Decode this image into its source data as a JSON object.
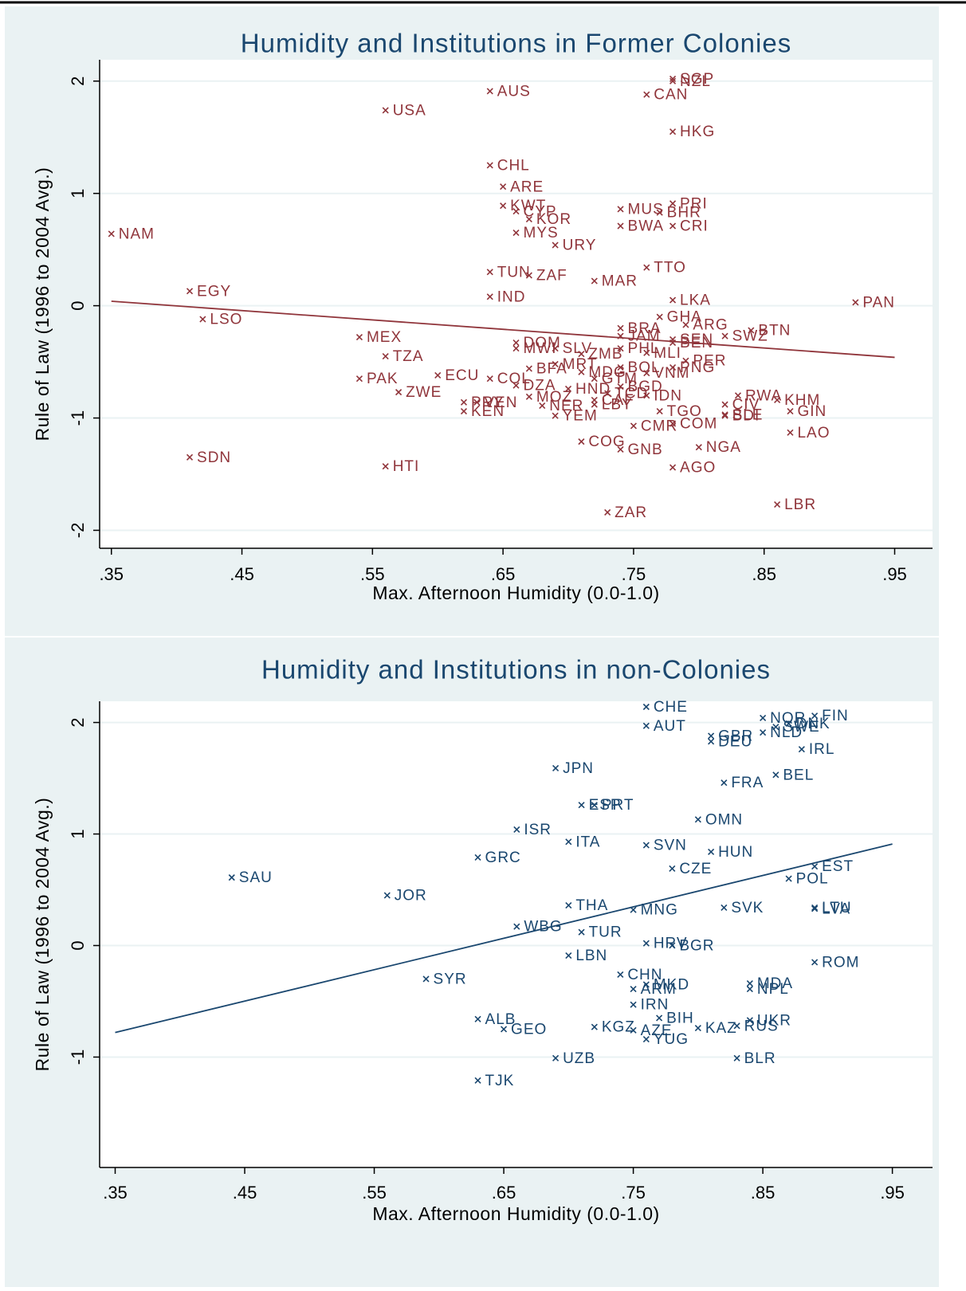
{
  "chart_data": [
    {
      "type": "scatter",
      "title": "Humidity and Institutions in Former Colonies",
      "x_label": "Max. Afternoon Humidity (0.0-1.0)",
      "y_label": "Rule of Law (1996 to 2004 Avg.)",
      "color": "#90353b",
      "grid": true,
      "xlim": [
        0.341,
        0.979
      ],
      "ylim": [
        -2.16,
        2.19
      ],
      "xticks": [
        {
          "value": 0.35,
          "label": ".35"
        },
        {
          "value": 0.45,
          "label": ".45"
        },
        {
          "value": 0.55,
          "label": ".55"
        },
        {
          "value": 0.65,
          "label": ".65"
        },
        {
          "value": 0.75,
          "label": ".75"
        },
        {
          "value": 0.85,
          "label": ".85"
        },
        {
          "value": 0.95,
          "label": ".95"
        }
      ],
      "yticks": [
        -2,
        -1,
        0,
        1,
        2
      ],
      "labels": [
        "NAM",
        "EGY",
        "LSO",
        "SDN",
        "MEX",
        "TZA",
        "PAK",
        "ZWE",
        "HTI",
        "USA",
        "AUS",
        "CHL",
        "ARE",
        "KWT",
        "CYP",
        "KOR",
        "MYS",
        "URY",
        "TUN",
        "ZAF",
        "IND",
        "MAR",
        "TTO",
        "LKA",
        "PAN",
        "SGP",
        "NZL",
        "CAN",
        "HKG",
        "PRI",
        "MUS",
        "BHR",
        "BWA",
        "CRI",
        "DOM",
        "MWI",
        "SLV",
        "BFA",
        "MRT",
        "ZMB",
        "ECU",
        "COL",
        "DZA",
        "HND",
        "BGD",
        "MDG",
        "GTM",
        "BOL",
        "VNM",
        "PNG",
        "PER",
        "IDN",
        "CAF",
        "TCD",
        "PRY",
        "KEN",
        "VEN",
        "MOZ",
        "NER",
        "LBY",
        "YEM",
        "COG",
        "GNB",
        "CMR",
        "TGO",
        "COM",
        "NGA",
        "AGO",
        "ZAR",
        "LBR",
        "LAO",
        "GIN",
        "KHM",
        "RWA",
        "CIV",
        "SLE",
        "BDI",
        "BTN",
        "SWZ",
        "GHA",
        "ARG",
        "BRA",
        "JAM",
        "PHL",
        "SEN",
        "BEN",
        "MLI"
      ],
      "x": [
        0.35,
        0.41,
        0.42,
        0.41,
        0.54,
        0.56,
        0.54,
        0.57,
        0.56,
        0.56,
        0.64,
        0.64,
        0.65,
        0.65,
        0.66,
        0.67,
        0.66,
        0.69,
        0.64,
        0.67,
        0.64,
        0.72,
        0.76,
        0.78,
        0.92,
        0.78,
        0.78,
        0.76,
        0.78,
        0.78,
        0.74,
        0.77,
        0.74,
        0.78,
        0.66,
        0.66,
        0.69,
        0.67,
        0.69,
        0.71,
        0.6,
        0.64,
        0.66,
        0.7,
        0.74,
        0.71,
        0.72,
        0.74,
        0.76,
        0.78,
        0.79,
        0.76,
        0.72,
        0.73,
        0.62,
        0.62,
        0.63,
        0.67,
        0.68,
        0.72,
        0.69,
        0.71,
        0.74,
        0.75,
        0.77,
        0.78,
        0.8,
        0.78,
        0.73,
        0.86,
        0.87,
        0.87,
        0.86,
        0.83,
        0.82,
        0.82,
        0.82,
        0.84,
        0.82,
        0.77,
        0.79,
        0.74,
        0.74,
        0.74,
        0.78,
        0.78,
        0.76
      ],
      "y": [
        0.64,
        0.13,
        -0.12,
        -1.35,
        -0.28,
        -0.45,
        -0.65,
        -0.77,
        -1.43,
        1.74,
        1.91,
        1.25,
        1.06,
        0.89,
        0.84,
        0.77,
        0.65,
        0.54,
        0.3,
        0.27,
        0.08,
        0.22,
        0.34,
        0.05,
        0.03,
        2.02,
        2.0,
        1.88,
        1.55,
        0.91,
        0.86,
        0.83,
        0.71,
        0.71,
        -0.33,
        -0.38,
        -0.38,
        -0.56,
        -0.52,
        -0.43,
        -0.62,
        -0.65,
        -0.71,
        -0.74,
        -0.72,
        -0.59,
        -0.65,
        -0.55,
        -0.6,
        -0.55,
        -0.49,
        -0.8,
        -0.84,
        -0.78,
        -0.86,
        -0.94,
        -0.86,
        -0.81,
        -0.89,
        -0.88,
        -0.98,
        -1.21,
        -1.28,
        -1.07,
        -0.94,
        -1.05,
        -1.26,
        -1.44,
        -1.84,
        -1.77,
        -1.13,
        -0.94,
        -0.84,
        -0.8,
        -0.88,
        -0.97,
        -0.98,
        -0.22,
        -0.27,
        -0.1,
        -0.17,
        -0.2,
        -0.27,
        -0.38,
        -0.3,
        -0.33,
        -0.42
      ],
      "fit_line": {
        "x": [
          0.35,
          0.95
        ],
        "y": [
          0.04,
          -0.46
        ]
      }
    },
    {
      "type": "scatter",
      "title": "Humidity and Institutions in non-Colonies",
      "x_label": "Max. Afternoon Humidity (0.0-1.0)",
      "y_label": "Rule of Law (1996 to 2004 Avg.)",
      "color": "#1a476f",
      "grid": true,
      "xlim": [
        0.338,
        0.981
      ],
      "ylim": [
        -1.99,
        2.19
      ],
      "xticks": [
        {
          "value": 0.35,
          "label": ".35"
        },
        {
          "value": 0.45,
          "label": ".45"
        },
        {
          "value": 0.55,
          "label": ".55"
        },
        {
          "value": 0.65,
          "label": ".65"
        },
        {
          "value": 0.75,
          "label": ".75"
        },
        {
          "value": 0.85,
          "label": ".85"
        },
        {
          "value": 0.95,
          "label": ".95"
        }
      ],
      "yticks": [
        -1,
        0,
        1,
        2
      ],
      "labels": [
        "SAU",
        "JOR",
        "SYR",
        "GRC",
        "ISR",
        "WBG",
        "ALB",
        "GEO",
        "TJK",
        "JPN",
        "ESP",
        "PRT",
        "ITA",
        "THA",
        "TUR",
        "LBN",
        "UZB",
        "KGZ",
        "CHE",
        "AUT",
        "SVN",
        "CZE",
        "MNG",
        "HRV",
        "BGR",
        "CHN",
        "MKD",
        "ARM",
        "IRN",
        "BIH",
        "AZE",
        "YUG",
        "KAZ",
        "RUS",
        "UKR",
        "BLR",
        "MDA",
        "NPL",
        "ROM",
        "SVK",
        "LTU",
        "LVA",
        "POL",
        "EST",
        "HUN",
        "OMN",
        "FRA",
        "BEL",
        "IRL",
        "GBR",
        "DEU",
        "NOR",
        "SWE",
        "NLD",
        "DNK",
        "FIN"
      ],
      "x": [
        0.44,
        0.56,
        0.59,
        0.63,
        0.66,
        0.66,
        0.63,
        0.65,
        0.63,
        0.69,
        0.71,
        0.72,
        0.7,
        0.7,
        0.71,
        0.7,
        0.69,
        0.72,
        0.76,
        0.76,
        0.76,
        0.78,
        0.75,
        0.76,
        0.78,
        0.74,
        0.76,
        0.75,
        0.75,
        0.77,
        0.75,
        0.76,
        0.8,
        0.83,
        0.84,
        0.83,
        0.84,
        0.84,
        0.89,
        0.82,
        0.89,
        0.89,
        0.87,
        0.89,
        0.81,
        0.8,
        0.82,
        0.86,
        0.88,
        0.81,
        0.81,
        0.85,
        0.86,
        0.85,
        0.87,
        0.89
      ],
      "y": [
        0.61,
        0.45,
        -0.3,
        0.79,
        1.04,
        0.17,
        -0.66,
        -0.75,
        -1.21,
        1.59,
        1.26,
        1.26,
        0.93,
        0.36,
        0.12,
        -0.09,
        -1.01,
        -0.73,
        2.14,
        1.97,
        0.9,
        0.69,
        0.32,
        0.02,
        0.0,
        -0.26,
        -0.35,
        -0.39,
        -0.53,
        -0.65,
        -0.76,
        -0.84,
        -0.74,
        -0.72,
        -0.67,
        -1.01,
        -0.34,
        -0.39,
        -0.15,
        0.34,
        0.34,
        0.33,
        0.6,
        0.71,
        0.84,
        1.13,
        1.46,
        1.53,
        1.76,
        1.88,
        1.83,
        2.04,
        1.96,
        1.91,
        1.99,
        2.06
      ],
      "fit_line": {
        "x": [
          0.35,
          0.95
        ],
        "y": [
          -0.78,
          0.91
        ]
      }
    }
  ]
}
